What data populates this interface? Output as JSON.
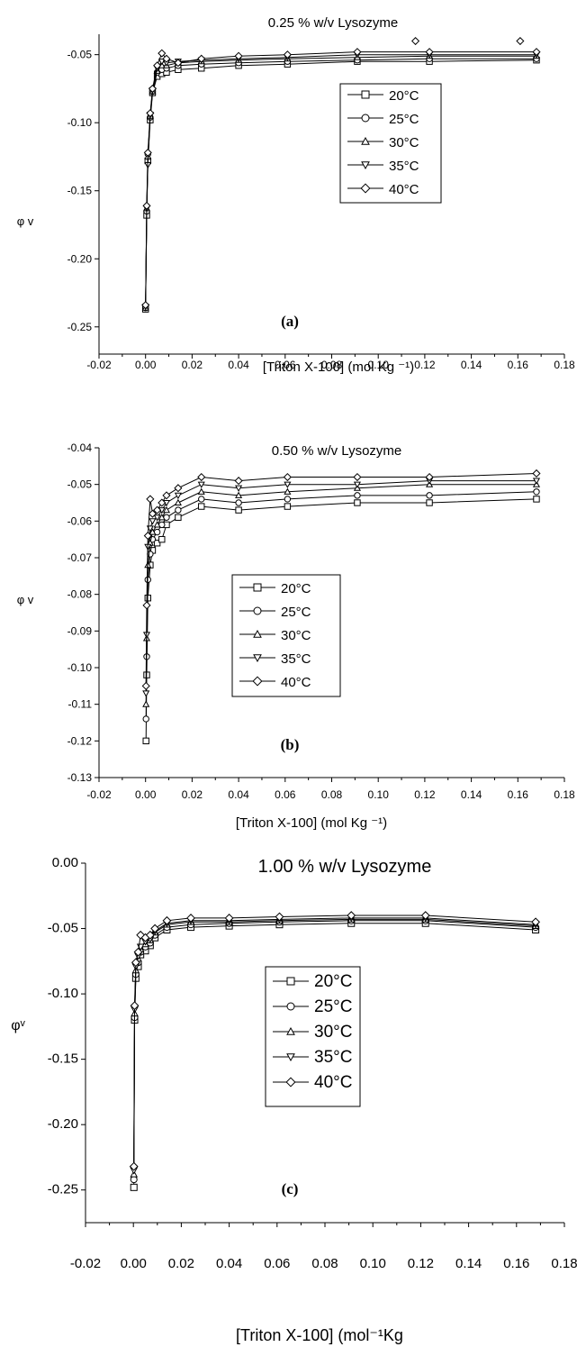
{
  "chart_data": [
    {
      "id": "a",
      "type": "line",
      "title": "0.25 % w/v Lysozyme",
      "xlabel": "[Triton X-100] (mol Kg ⁻¹)",
      "ylabel": "φ v",
      "panel_label": "(a)",
      "xlim": [
        -0.02,
        0.18
      ],
      "ylim": [
        -0.27,
        -0.035
      ],
      "xticks": [
        "-0.02",
        "0.00",
        "0.02",
        "0.04",
        "0.06",
        "0.08",
        "0.10",
        "0.12",
        "0.14",
        "0.16",
        "0.18"
      ],
      "yticks": [
        "-0.05",
        "-0.10",
        "-0.15",
        "-0.20",
        "-0.25"
      ],
      "x": [
        0.0,
        0.0005,
        0.001,
        0.002,
        0.003,
        0.005,
        0.007,
        0.009,
        0.014,
        0.024,
        0.04,
        0.061,
        0.091,
        0.122,
        0.168
      ],
      "series": [
        {
          "name": "20°C",
          "marker": "square",
          "values": [
            -0.237,
            -0.168,
            -0.128,
            -0.098,
            -0.078,
            -0.066,
            -0.064,
            -0.063,
            -0.061,
            -0.06,
            -0.058,
            -0.057,
            -0.055,
            -0.055,
            -0.054
          ]
        },
        {
          "name": "25°C",
          "marker": "circle",
          "values": [
            -0.236,
            -0.165,
            -0.123,
            -0.096,
            -0.077,
            -0.063,
            -0.061,
            -0.06,
            -0.058,
            -0.057,
            -0.056,
            -0.055,
            -0.054,
            -0.053,
            -0.053
          ]
        },
        {
          "name": "30°C",
          "marker": "triangle-up",
          "values": [
            -0.236,
            -0.163,
            -0.125,
            -0.095,
            -0.077,
            -0.062,
            -0.058,
            -0.058,
            -0.056,
            -0.055,
            -0.054,
            -0.053,
            -0.052,
            -0.051,
            -0.051
          ]
        },
        {
          "name": "35°C",
          "marker": "triangle-down",
          "values": [
            -0.235,
            -0.163,
            -0.131,
            -0.094,
            -0.076,
            -0.06,
            -0.055,
            -0.056,
            -0.055,
            -0.054,
            -0.053,
            -0.052,
            -0.05,
            -0.05,
            -0.05
          ]
        },
        {
          "name": "40°C",
          "marker": "diamond",
          "values": [
            -0.234,
            -0.161,
            -0.122,
            -0.093,
            -0.075,
            -0.058,
            -0.049,
            -0.053,
            -0.056,
            -0.053,
            -0.051,
            -0.05,
            -0.048,
            -0.048,
            -0.048
          ]
        }
      ],
      "extra_points": [
        {
          "series": "40°C",
          "x": 0.116,
          "y": -0.04
        },
        {
          "series": "40°C",
          "x": 0.161,
          "y": -0.04
        }
      ],
      "legend_position": "right"
    },
    {
      "id": "b",
      "type": "line",
      "title": "0.50 % w/v Lysozyme",
      "xlabel": "[Triton X-100] (mol Kg ⁻¹)",
      "ylabel": "φ v",
      "panel_label": "(b)",
      "xlim": [
        -0.02,
        0.18
      ],
      "ylim": [
        -0.13,
        -0.04
      ],
      "xticks": [
        "-0.02",
        "0.00",
        "0.02",
        "0.04",
        "0.06",
        "0.08",
        "0.10",
        "0.12",
        "0.14",
        "0.16",
        "0.18"
      ],
      "yticks": [
        "-0.04",
        "-0.05",
        "-0.06",
        "-0.07",
        "-0.08",
        "-0.09",
        "-0.10",
        "-0.11",
        "-0.12",
        "-0.13"
      ],
      "x": [
        0.0002,
        0.0005,
        0.001,
        0.002,
        0.003,
        0.005,
        0.007,
        0.009,
        0.014,
        0.024,
        0.04,
        0.061,
        0.091,
        0.122,
        0.168
      ],
      "series": [
        {
          "name": "20°C",
          "marker": "square",
          "values": [
            -0.12,
            -0.102,
            -0.081,
            -0.072,
            -0.068,
            -0.066,
            -0.065,
            -0.061,
            -0.059,
            -0.056,
            -0.057,
            -0.056,
            -0.055,
            -0.055,
            -0.054
          ]
        },
        {
          "name": "25°C",
          "marker": "circle",
          "values": [
            -0.114,
            -0.097,
            -0.076,
            -0.069,
            -0.065,
            -0.063,
            -0.061,
            -0.059,
            -0.057,
            -0.054,
            -0.055,
            -0.054,
            -0.053,
            -0.053,
            -0.052
          ]
        },
        {
          "name": "30°C",
          "marker": "triangle-up",
          "values": [
            -0.11,
            -0.092,
            -0.072,
            -0.066,
            -0.063,
            -0.061,
            -0.059,
            -0.057,
            -0.055,
            -0.052,
            -0.053,
            -0.052,
            -0.051,
            -0.05,
            -0.05
          ]
        },
        {
          "name": "35°C",
          "marker": "triangle-down",
          "values": [
            -0.107,
            -0.091,
            -0.067,
            -0.062,
            -0.06,
            -0.059,
            -0.057,
            -0.055,
            -0.053,
            -0.05,
            -0.051,
            -0.05,
            -0.05,
            -0.049,
            -0.049
          ]
        },
        {
          "name": "40°C",
          "marker": "diamond",
          "values": [
            -0.105,
            -0.083,
            -0.064,
            -0.054,
            -0.058,
            -0.057,
            -0.055,
            -0.053,
            -0.051,
            -0.048,
            -0.049,
            -0.048,
            -0.048,
            -0.048,
            -0.047
          ]
        }
      ],
      "legend_position": "center"
    },
    {
      "id": "c",
      "type": "line",
      "title": "1.00 % w/v Lysozyme",
      "xlabel": "[Triton X-100] (mol⁻¹Kg",
      "ylabel": "φᵛ",
      "panel_label": "(c)",
      "xlim": [
        -0.02,
        0.18
      ],
      "ylim": [
        -0.275,
        0.0
      ],
      "xticks": [
        "-0.02",
        "0.00",
        "0.02",
        "0.04",
        "0.06",
        "0.08",
        "0.10",
        "0.12",
        "0.14",
        "0.16",
        "0.18"
      ],
      "yticks": [
        "0.00",
        "-0.05",
        "-0.10",
        "-0.15",
        "-0.20",
        "-0.25"
      ],
      "x": [
        0.0002,
        0.0005,
        0.001,
        0.002,
        0.003,
        0.005,
        0.007,
        0.009,
        0.014,
        0.024,
        0.04,
        0.061,
        0.091,
        0.122,
        0.168
      ],
      "series": [
        {
          "name": "20°C",
          "marker": "square",
          "values": [
            -0.248,
            -0.12,
            -0.088,
            -0.079,
            -0.07,
            -0.067,
            -0.063,
            -0.057,
            -0.051,
            -0.049,
            -0.048,
            -0.047,
            -0.046,
            -0.046,
            -0.051
          ]
        },
        {
          "name": "25°C",
          "marker": "circle",
          "values": [
            -0.242,
            -0.118,
            -0.085,
            -0.076,
            -0.068,
            -0.064,
            -0.061,
            -0.055,
            -0.049,
            -0.047,
            -0.046,
            -0.045,
            -0.044,
            -0.044,
            -0.049
          ]
        },
        {
          "name": "30°C",
          "marker": "triangle-up",
          "values": [
            -0.238,
            -0.115,
            -0.082,
            -0.073,
            -0.066,
            -0.062,
            -0.059,
            -0.053,
            -0.047,
            -0.045,
            -0.045,
            -0.044,
            -0.043,
            -0.043,
            -0.048
          ]
        },
        {
          "name": "35°C",
          "marker": "triangle-down",
          "values": [
            -0.235,
            -0.112,
            -0.079,
            -0.071,
            -0.064,
            -0.06,
            -0.058,
            -0.052,
            -0.046,
            -0.044,
            -0.044,
            -0.043,
            -0.042,
            -0.042,
            -0.047
          ]
        },
        {
          "name": "40°C",
          "marker": "diamond",
          "values": [
            -0.232,
            -0.109,
            -0.076,
            -0.068,
            -0.055,
            -0.057,
            -0.055,
            -0.05,
            -0.044,
            -0.042,
            -0.042,
            -0.041,
            -0.04,
            -0.04,
            -0.045
          ]
        }
      ],
      "legend_position": "center"
    }
  ]
}
